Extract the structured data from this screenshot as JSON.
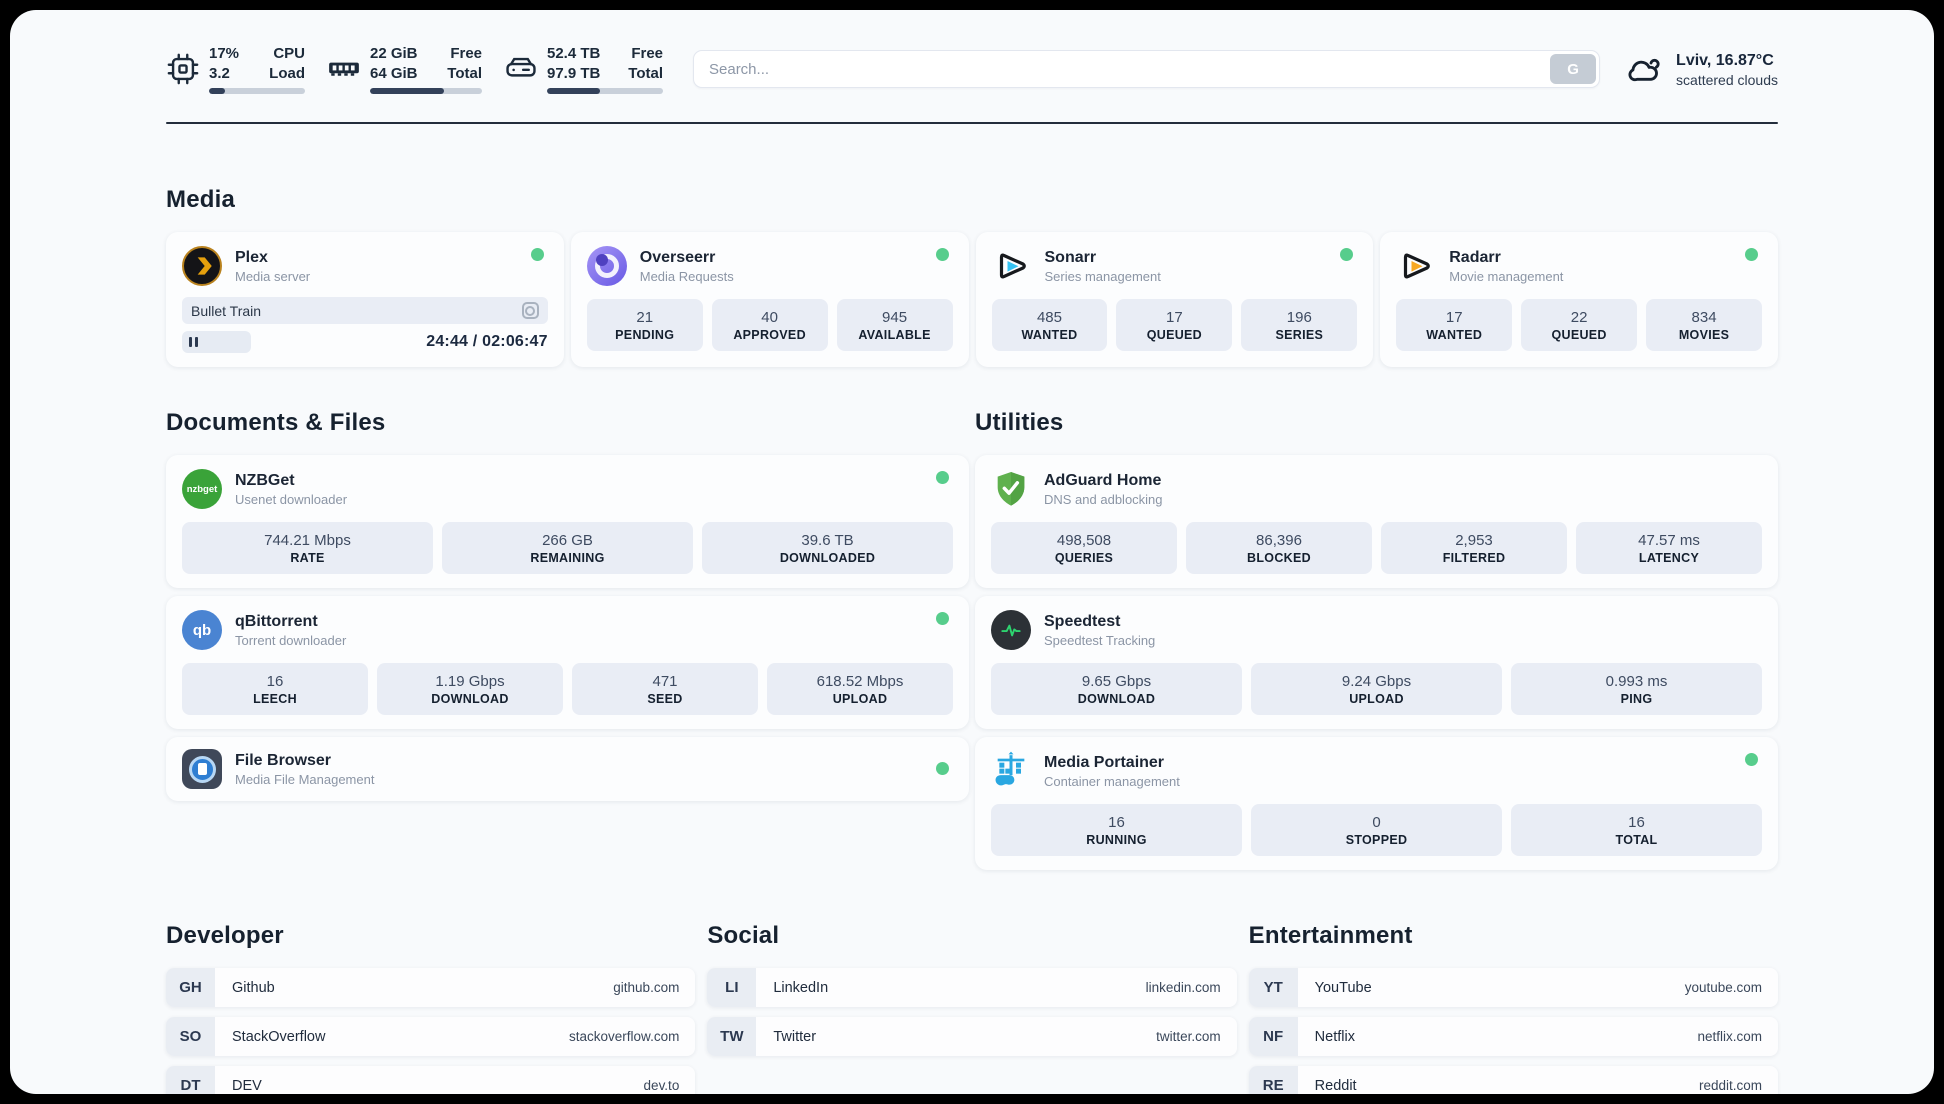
{
  "header": {
    "cpu": {
      "icon": "cpu-icon",
      "value_top": "17%",
      "value_bottom": "3.2",
      "label_top": "CPU",
      "label_bottom": "Load",
      "progress": 17
    },
    "memory": {
      "icon": "ram-icon",
      "value_top": "22 GiB",
      "value_bottom": "64 GiB",
      "label_top": "Free",
      "label_bottom": "Total",
      "progress": 66
    },
    "disk": {
      "icon": "disk-icon",
      "value_top": "52.4 TB",
      "value_bottom": "97.9 TB",
      "label_top": "Free",
      "label_bottom": "Total",
      "progress": 46
    },
    "search": {
      "placeholder": "Search...",
      "button_label": "G"
    },
    "weather": {
      "icon": "cloud-icon",
      "city_temp": "Lviv, 16.87°C",
      "condition": "scattered clouds"
    }
  },
  "sections": {
    "media": "Media",
    "documents": "Documents & Files",
    "utilities": "Utilities",
    "developer": "Developer",
    "social": "Social",
    "entertainment": "Entertainment"
  },
  "apps": {
    "plex": {
      "name": "Plex",
      "desc": "Media server",
      "status": "online",
      "now_playing": {
        "title": "Bullet Train",
        "time_display": "24:44 / 02:06:47",
        "progress_pct": 19
      }
    },
    "overseerr": {
      "name": "Overseerr",
      "desc": "Media Requests",
      "status": "online",
      "stats": [
        {
          "value": "21",
          "label": "PENDING"
        },
        {
          "value": "40",
          "label": "APPROVED"
        },
        {
          "value": "945",
          "label": "AVAILABLE"
        }
      ]
    },
    "sonarr": {
      "name": "Sonarr",
      "desc": "Series management",
      "status": "online",
      "stats": [
        {
          "value": "485",
          "label": "WANTED"
        },
        {
          "value": "17",
          "label": "QUEUED"
        },
        {
          "value": "196",
          "label": "SERIES"
        }
      ]
    },
    "radarr": {
      "name": "Radarr",
      "desc": "Movie management",
      "status": "online",
      "stats": [
        {
          "value": "17",
          "label": "WANTED"
        },
        {
          "value": "22",
          "label": "QUEUED"
        },
        {
          "value": "834",
          "label": "MOVIES"
        }
      ]
    },
    "nzbget": {
      "name": "NZBGet",
      "desc": "Usenet downloader",
      "status": "online",
      "logo_text": "nzbget",
      "stats": [
        {
          "value": "744.21 Mbps",
          "label": "RATE"
        },
        {
          "value": "266 GB",
          "label": "REMAINING"
        },
        {
          "value": "39.6 TB",
          "label": "DOWNLOADED"
        }
      ]
    },
    "qbittorrent": {
      "name": "qBittorrent",
      "desc": "Torrent downloader",
      "status": "online",
      "logo_text": "qb",
      "stats": [
        {
          "value": "16",
          "label": "LEECH"
        },
        {
          "value": "1.19 Gbps",
          "label": "DOWNLOAD"
        },
        {
          "value": "471",
          "label": "SEED"
        },
        {
          "value": "618.52 Mbps",
          "label": "UPLOAD"
        }
      ]
    },
    "filebrowser": {
      "name": "File Browser",
      "desc": "Media File Management",
      "status": "online"
    },
    "adguard": {
      "name": "AdGuard Home",
      "desc": "DNS and adblocking",
      "stats": [
        {
          "value": "498,508",
          "label": "QUERIES"
        },
        {
          "value": "86,396",
          "label": "BLOCKED"
        },
        {
          "value": "2,953",
          "label": "FILTERED"
        },
        {
          "value": "47.57 ms",
          "label": "LATENCY"
        }
      ]
    },
    "speedtest": {
      "name": "Speedtest",
      "desc": "Speedtest Tracking",
      "stats": [
        {
          "value": "9.65 Gbps",
          "label": "DOWNLOAD"
        },
        {
          "value": "9.24 Gbps",
          "label": "UPLOAD"
        },
        {
          "value": "0.993 ms",
          "label": "PING"
        }
      ]
    },
    "portainer": {
      "name": "Media Portainer",
      "desc": "Container management",
      "status": "online",
      "stats": [
        {
          "value": "16",
          "label": "RUNNING"
        },
        {
          "value": "0",
          "label": "STOPPED"
        },
        {
          "value": "16",
          "label": "TOTAL"
        }
      ]
    }
  },
  "bookmarks": {
    "developer": [
      {
        "abbr": "GH",
        "name": "Github",
        "url": "github.com"
      },
      {
        "abbr": "SO",
        "name": "StackOverflow",
        "url": "stackoverflow.com"
      },
      {
        "abbr": "DT",
        "name": "DEV",
        "url": "dev.to"
      }
    ],
    "social": [
      {
        "abbr": "LI",
        "name": "LinkedIn",
        "url": "linkedin.com"
      },
      {
        "abbr": "TW",
        "name": "Twitter",
        "url": "twitter.com"
      }
    ],
    "entertainment": [
      {
        "abbr": "YT",
        "name": "YouTube",
        "url": "youtube.com"
      },
      {
        "abbr": "NF",
        "name": "Netflix",
        "url": "netflix.com"
      },
      {
        "abbr": "RE",
        "name": "Reddit",
        "url": "reddit.com"
      }
    ]
  },
  "colors": {
    "status_online": "#57cd8c",
    "accent_progress": "#33415a",
    "tile_bg": "#e9edf5"
  }
}
